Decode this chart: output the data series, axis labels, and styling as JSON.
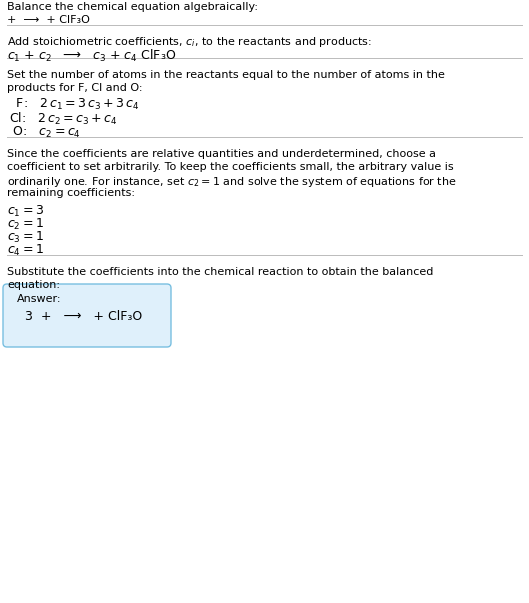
{
  "title": "Balance the chemical equation algebraically:",
  "line1": "+  ⟶  + ClF₃O",
  "section2_title": "Add stoichiometric coefficients, $c_i$, to the reactants and products:",
  "section2_eq": "$c_1$ + $c_2$   ⟶   $c_3$ + $c_4$ ClF₃O",
  "section3_title1": "Set the number of atoms in the reactants equal to the number of atoms in the",
  "section3_title2": "products for F, Cl and O:",
  "section3_F": " F:   $2\\,c_1 = 3\\,c_3 + 3\\,c_4$",
  "section3_Cl": "Cl:   $2\\,c_2 = c_3 + c_4$",
  "section3_O": " O:   $c_2 = c_4$",
  "section4_title1": "Since the coefficients are relative quantities and underdetermined, choose a",
  "section4_title2": "coefficient to set arbitrarily. To keep the coefficients small, the arbitrary value is",
  "section4_title3": "ordinarily one. For instance, set $c_2 = 1$ and solve the system of equations for the",
  "section4_title4": "remaining coefficients:",
  "section4_c1": "$c_1 = 3$",
  "section4_c2": "$c_2 = 1$",
  "section4_c3": "$c_3 = 1$",
  "section4_c4": "$c_4 = 1$",
  "section5_title1": "Substitute the coefficients into the chemical reaction to obtain the balanced",
  "section5_title2": "equation:",
  "answer_label": "Answer:",
  "answer_eq": "3  +   ⟶   + ClF₃O",
  "bg_color": "#ffffff",
  "text_color": "#000000",
  "answer_box_facecolor": "#dff0fb",
  "answer_box_edgecolor": "#78bfe0",
  "divider_color": "#bbbbbb",
  "fs": 8.0,
  "fs_eq": 9.0
}
